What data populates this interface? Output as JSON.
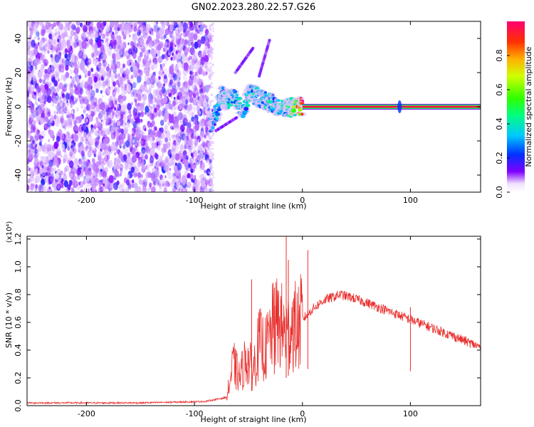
{
  "title": "GN02.2023.280.22.57.G26",
  "chart_data": [
    {
      "type": "heatmap",
      "xlabel": "Height of straight line (km)",
      "ylabel": "Frequency (Hz)",
      "xlim": [
        -255,
        165
      ],
      "ylim": [
        -50,
        50
      ],
      "xticks": [
        -200,
        -100,
        0,
        100
      ],
      "xtick_labels": [
        "-200",
        "-100",
        "0",
        "100"
      ],
      "yticks": [
        -40,
        -20,
        0,
        20,
        40
      ],
      "ytick_labels": [
        "-40",
        "-20",
        "0",
        "20",
        "40"
      ],
      "colorbar": {
        "label": "Normalized spectral amplitude",
        "range": [
          0,
          1
        ],
        "ticks": [
          0.0,
          0.2,
          0.4,
          0.6,
          0.8
        ],
        "tick_labels": [
          "0.0",
          "0.2",
          "0.4",
          "0.6",
          "0.8"
        ]
      },
      "features": {
        "noise_region_x": [
          -255,
          -85
        ],
        "noise_amplitude": [
          0.05,
          0.2
        ],
        "doppler_track": [
          {
            "x": -85,
            "y": -10,
            "a": 0.25
          },
          {
            "x": -80,
            "y": -4,
            "a": 0.3
          },
          {
            "x": -75,
            "y": 8,
            "a": 0.35
          },
          {
            "x": -70,
            "y": 3,
            "a": 0.3
          },
          {
            "x": -65,
            "y": 7,
            "a": 0.35
          },
          {
            "x": -55,
            "y": -2,
            "a": 0.3
          },
          {
            "x": -48,
            "y": 8,
            "a": 0.35
          },
          {
            "x": -40,
            "y": 5,
            "a": 0.3
          },
          {
            "x": -32,
            "y": 3,
            "a": 0.35
          },
          {
            "x": -25,
            "y": 1,
            "a": 0.35
          },
          {
            "x": -15,
            "y": -1,
            "a": 0.4
          },
          {
            "x": -8,
            "y": 0,
            "a": 0.5
          },
          {
            "x": 0,
            "y": 0,
            "a": 0.9
          }
        ],
        "carrier_line": {
          "x_from": 0,
          "x_to": 165,
          "y": 0,
          "amplitude": 0.95
        },
        "spot": {
          "x": 90,
          "y": 0
        }
      }
    },
    {
      "type": "line",
      "xlabel": "Height of straight line (km)",
      "ylabel": "SNR (10 * v/v)",
      "y_multiplier": "(x10⁴)",
      "xlim": [
        -255,
        165
      ],
      "ylim": [
        0,
        1.22
      ],
      "xticks": [
        -200,
        -100,
        0,
        100
      ],
      "xtick_labels": [
        "-200",
        "-100",
        "0",
        "100"
      ],
      "yticks": [
        0.0,
        0.2,
        0.4,
        0.6,
        0.8,
        1.0,
        1.2
      ],
      "ytick_labels": [
        "0.0",
        "0.2",
        "0.4",
        "0.6",
        "0.8",
        "1.0",
        "1.2"
      ],
      "color": "#e8302e",
      "series": [
        {
          "envelope": [
            [
              -255,
              0.02
            ],
            [
              -150,
              0.02
            ],
            [
              -90,
              0.03
            ],
            [
              -70,
              0.06
            ],
            [
              -64,
              0.3
            ],
            [
              -58,
              0.2
            ],
            [
              -52,
              0.35
            ],
            [
              -46,
              0.25
            ],
            [
              -40,
              0.45
            ],
            [
              -34,
              0.4
            ],
            [
              -28,
              0.55
            ],
            [
              -22,
              0.6
            ],
            [
              -15,
              0.5
            ],
            [
              -10,
              0.6
            ],
            [
              -5,
              0.55
            ],
            [
              0,
              0.62
            ],
            [
              10,
              0.7
            ],
            [
              20,
              0.76
            ],
            [
              35,
              0.8
            ],
            [
              45,
              0.78
            ],
            [
              60,
              0.74
            ],
            [
              80,
              0.68
            ],
            [
              100,
              0.62
            ],
            [
              120,
              0.56
            ],
            [
              140,
              0.5
            ],
            [
              165,
              0.42
            ]
          ],
          "spikes": [
            {
              "x": -47,
              "y": 0.91
            },
            {
              "x": -26,
              "y": 0.85
            },
            {
              "x": -15,
              "y": 1.22
            },
            {
              "x": -13,
              "y": 1.05
            },
            {
              "x": 5,
              "y": 1.12
            },
            {
              "x": 100,
              "y": 0.71
            }
          ]
        }
      ]
    }
  ]
}
